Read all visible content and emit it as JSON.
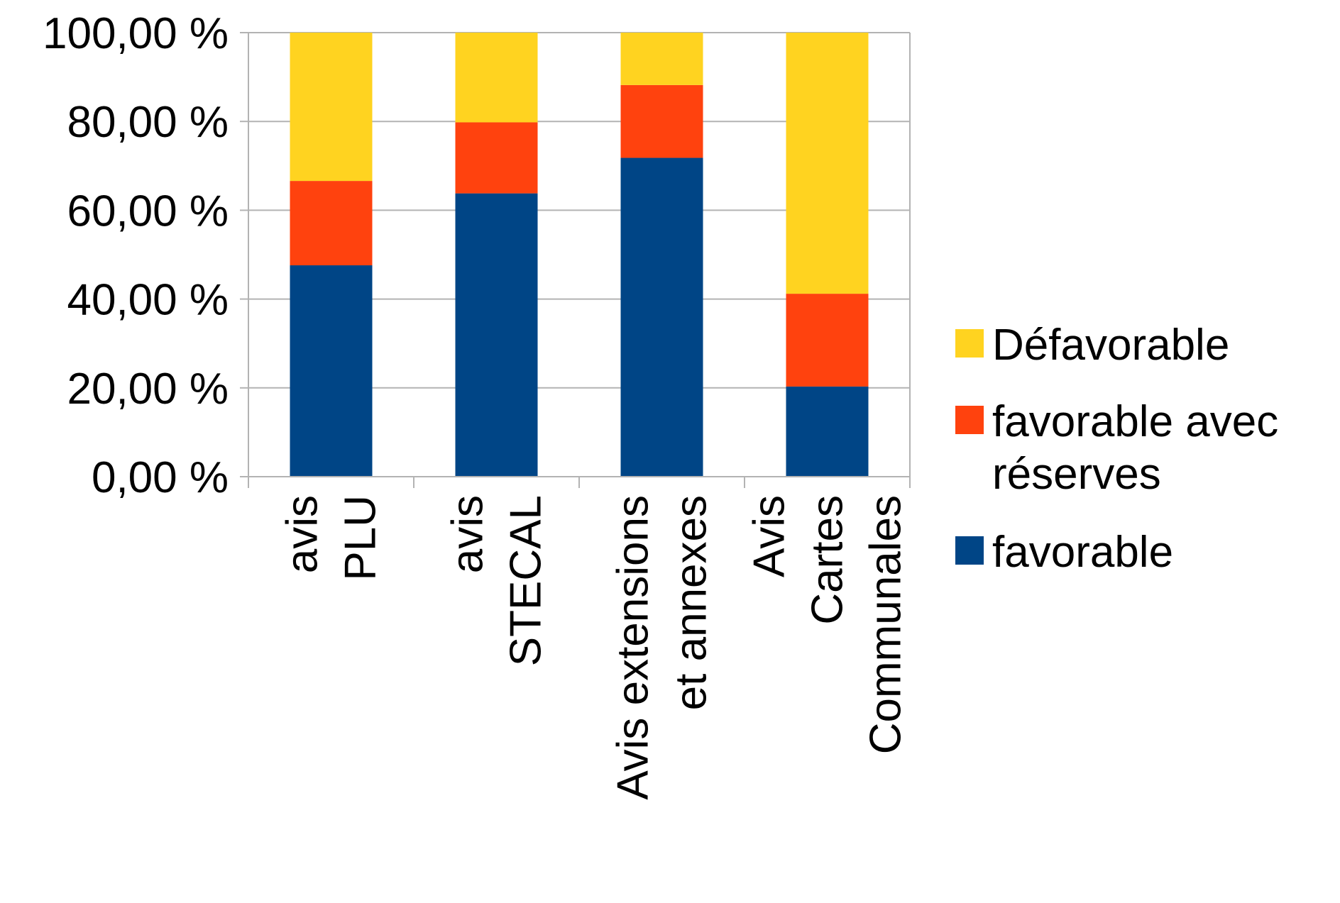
{
  "chart_data": {
    "type": "bar",
    "stacked": true,
    "categories": [
      [
        "avis",
        "PLU"
      ],
      [
        "avis",
        "STECAL"
      ],
      [
        "Avis extensions",
        "et annexes"
      ],
      [
        "Avis",
        "Cartes",
        "Communales"
      ]
    ],
    "series": [
      {
        "name": "favorable",
        "color": "#004586",
        "values": [
          47.6,
          63.8,
          71.8,
          20.3
        ]
      },
      {
        "name": "favorable avec réserves",
        "color": "#ff420e",
        "values": [
          19.0,
          16.0,
          16.4,
          20.9
        ]
      },
      {
        "name": "Défavorable",
        "color": "#ffd320",
        "values": [
          33.4,
          20.2,
          11.8,
          58.8
        ]
      }
    ],
    "yticks": [
      "0,00 %",
      "20,00 %",
      "40,00 %",
      "60,00 %",
      "80,00 %",
      "100,00 %"
    ],
    "ylim": [
      0,
      100
    ],
    "grid": true,
    "legend": {
      "position": "right",
      "entries": [
        {
          "label_lines": [
            "Défavorable"
          ],
          "color": "#ffd320"
        },
        {
          "label_lines": [
            "favorable avec",
            "réserves"
          ],
          "color": "#ff420e"
        },
        {
          "label_lines": [
            "favorable"
          ],
          "color": "#004586"
        }
      ]
    }
  }
}
